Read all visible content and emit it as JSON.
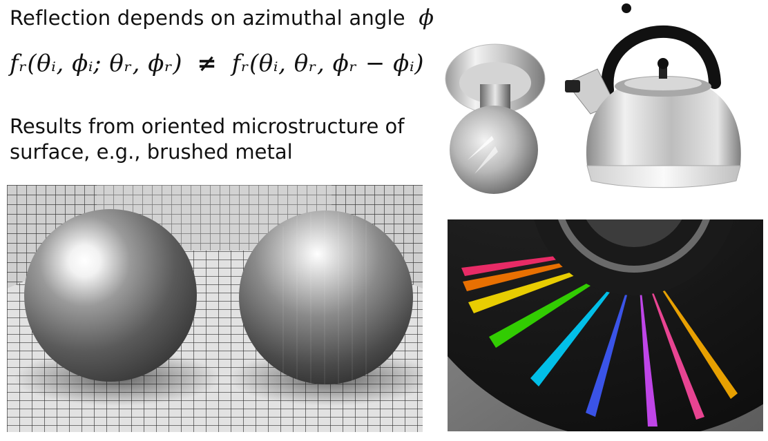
{
  "slide": {
    "heading": "Reflection depends on azimuthal angle",
    "heading_symbol": "ϕ",
    "equation_lhs": "fᵣ(θᵢ, ϕᵢ; θᵣ, ϕᵣ)",
    "equation_neq": "≠",
    "equation_rhs": "fᵣ(θᵢ, θᵣ, ϕᵣ − ϕᵢ)",
    "body_line_1": "Results from oriented microstructure of",
    "body_line_2": "surface, e.g., brushed metal"
  },
  "images": {
    "door_knob": "brushed-metal-door-knob",
    "kettle": "brushed-metal-kettle",
    "spheres_render": "two-metal-spheres-in-tiled-room",
    "cd": "compact-disc-iridescence"
  }
}
